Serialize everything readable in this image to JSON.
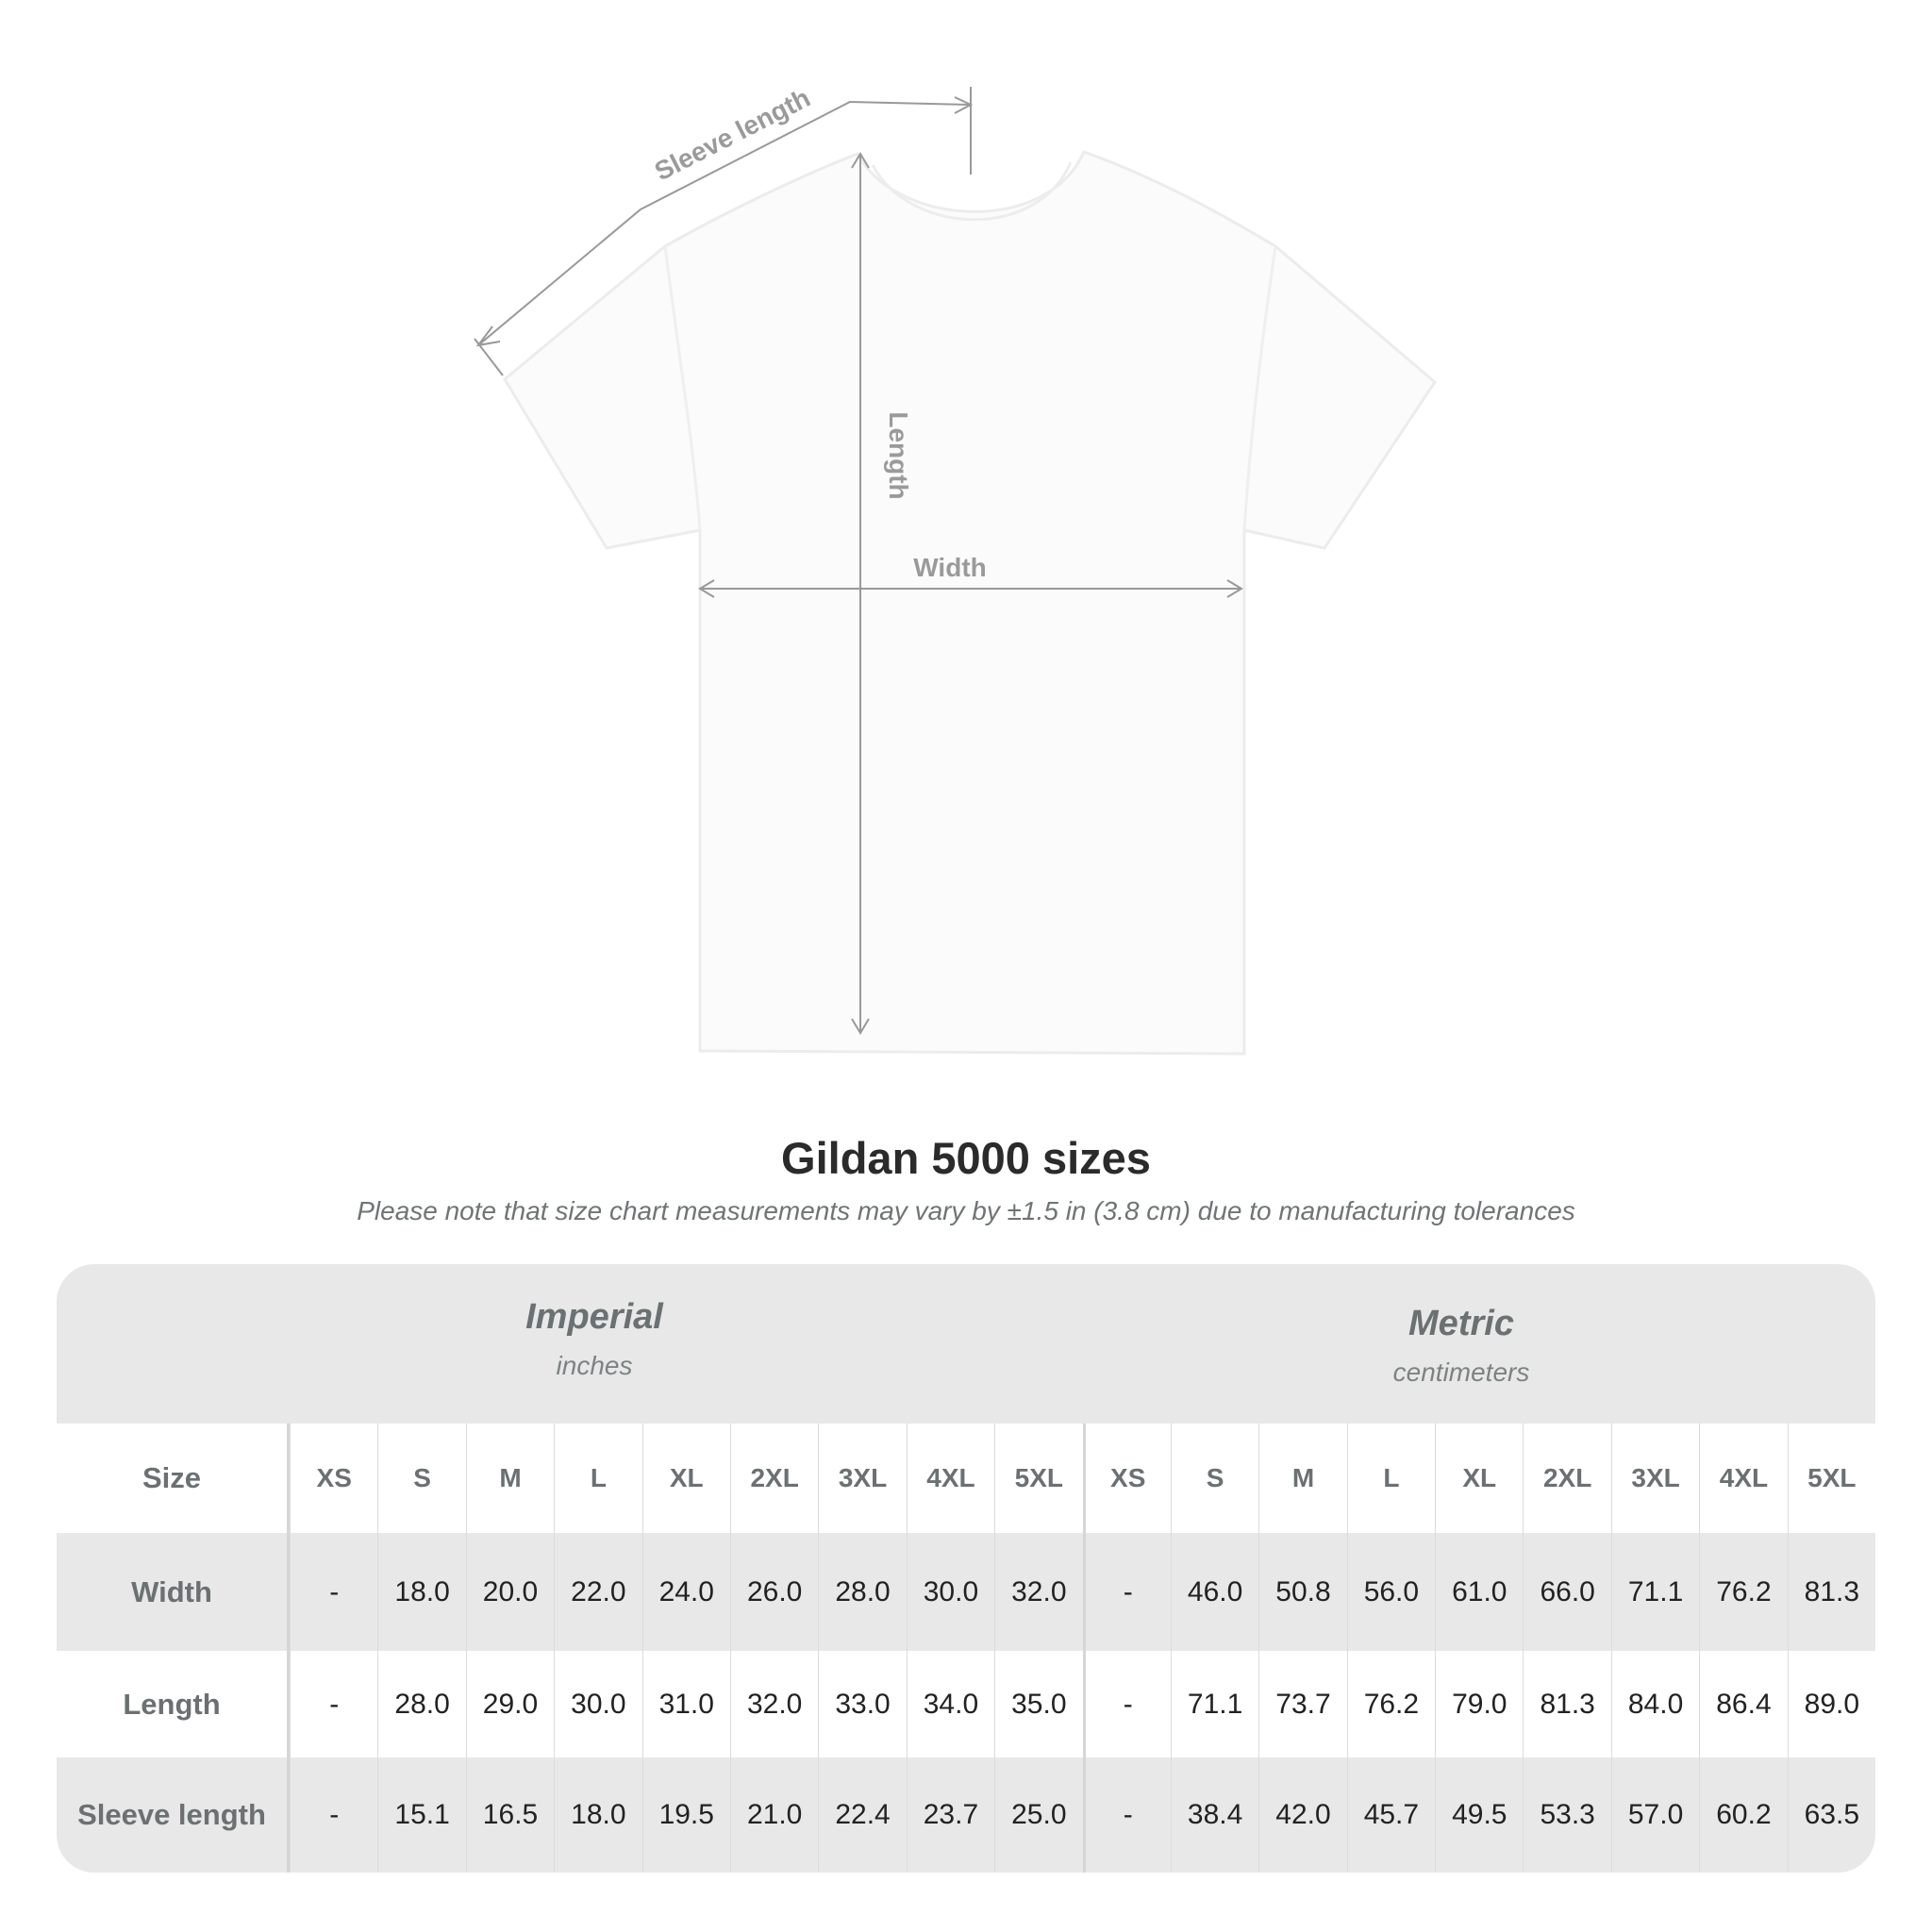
{
  "diagram": {
    "labels": {
      "sleeve": "Sleeve length",
      "length": "Length",
      "width": "Width"
    },
    "colors": {
      "shirt": "#fbfbfb",
      "measure_lines": "#999999"
    }
  },
  "title": "Gildan 5000 sizes",
  "note": "Please note that size chart measurements may vary by ±1.5 in (3.8 cm) due to manufacturing tolerances",
  "table": {
    "imperial": {
      "name": "Imperial",
      "unit": "inches"
    },
    "metric": {
      "name": "Metric",
      "unit": "centimeters"
    },
    "size_label": "Size",
    "sizes": [
      "XS",
      "S",
      "M",
      "L",
      "XL",
      "2XL",
      "3XL",
      "4XL",
      "5XL"
    ],
    "rows": [
      {
        "label": "Width",
        "imperial": [
          "-",
          "18.0",
          "20.0",
          "22.0",
          "24.0",
          "26.0",
          "28.0",
          "30.0",
          "32.0"
        ],
        "metric": [
          "-",
          "46.0",
          "50.8",
          "56.0",
          "61.0",
          "66.0",
          "71.1",
          "76.2",
          "81.3"
        ]
      },
      {
        "label": "Length",
        "imperial": [
          "-",
          "28.0",
          "29.0",
          "30.0",
          "31.0",
          "32.0",
          "33.0",
          "34.0",
          "35.0"
        ],
        "metric": [
          "-",
          "71.1",
          "73.7",
          "76.2",
          "79.0",
          "81.3",
          "84.0",
          "86.4",
          "89.0"
        ]
      },
      {
        "label": "Sleeve length",
        "imperial": [
          "-",
          "15.1",
          "16.5",
          "18.0",
          "19.5",
          "21.0",
          "22.4",
          "23.7",
          "25.0"
        ],
        "metric": [
          "-",
          "38.4",
          "42.0",
          "45.7",
          "49.5",
          "53.3",
          "57.0",
          "60.2",
          "63.5"
        ]
      }
    ]
  }
}
